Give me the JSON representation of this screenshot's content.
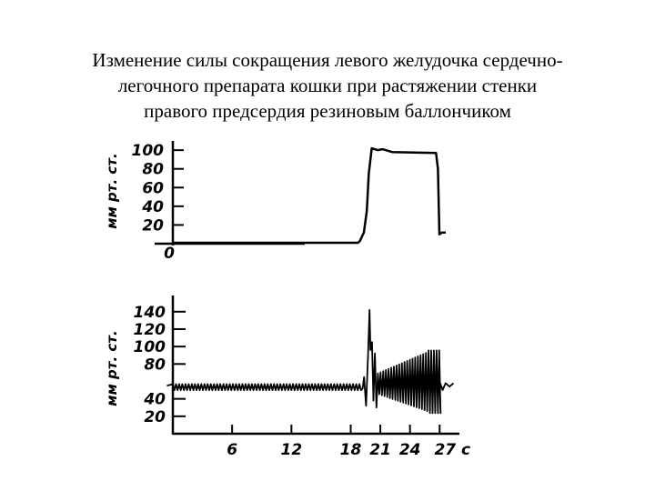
{
  "title_lines": [
    "Изменение силы сокращения левого желудочка сердечно-",
    "легочного препарата кошки при растяжении стенки",
    "правого предсердия резиновым баллончиком"
  ],
  "chart_data": [
    {
      "type": "line",
      "name": "top",
      "ylabel": "мм рт. ст.",
      "yticks": [
        "100",
        "80",
        "60",
        "40",
        "20",
        "0"
      ],
      "ytick_values": [
        100,
        80,
        60,
        40,
        20,
        0
      ],
      "ylim": [
        0,
        105
      ],
      "xlim": [
        0,
        28
      ],
      "series": [
        {
          "x": [
            0,
            19.0,
            19.2,
            19.6,
            19.9,
            20.1,
            20.4,
            21.0,
            21.5,
            22.5,
            27.0,
            27.2,
            27.35,
            27.6,
            28.0
          ],
          "y": [
            1,
            1,
            3,
            12,
            35,
            75,
            102,
            100,
            101,
            98,
            97,
            80,
            10,
            12,
            12
          ]
        }
      ]
    },
    {
      "type": "line",
      "name": "bottom",
      "ylabel": "мм рт. ст.",
      "yticks": [
        "140",
        "120",
        "100",
        "80",
        "40",
        "20"
      ],
      "ytick_values": [
        140,
        120,
        100,
        80,
        40,
        20
      ],
      "xticks": [
        "6",
        "12",
        "18",
        "21",
        "24",
        "27 с"
      ],
      "xtick_values": [
        6,
        12,
        18,
        21,
        24,
        27
      ],
      "ylim": [
        0,
        145
      ],
      "xlim": [
        0,
        29
      ]
    }
  ]
}
